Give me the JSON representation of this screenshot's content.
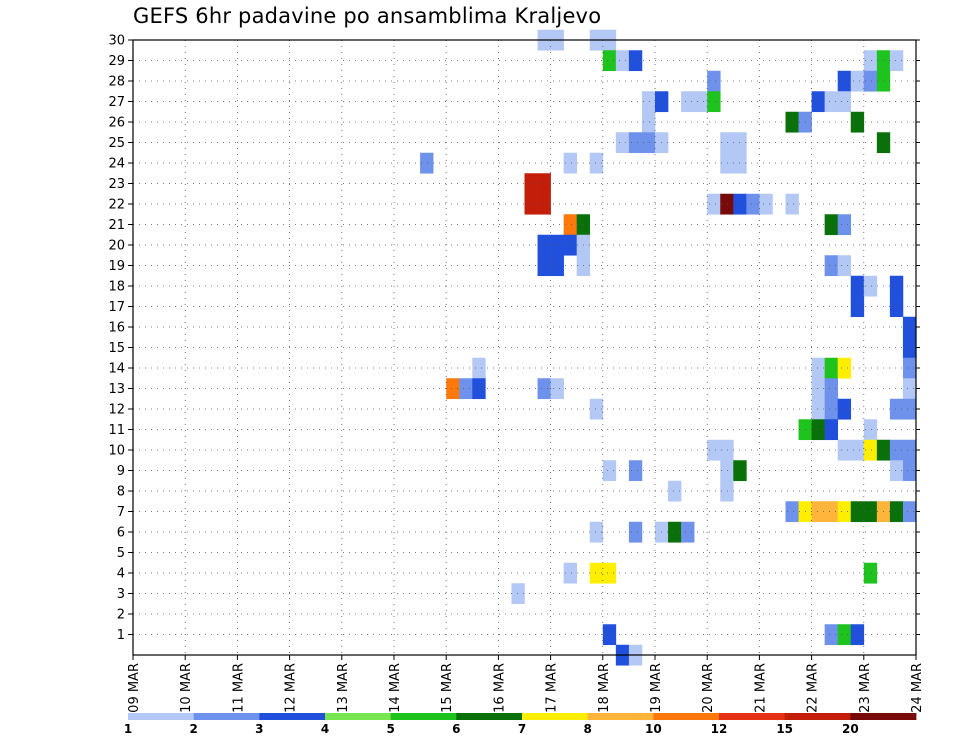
{
  "chart_data": {
    "type": "heatmap",
    "title": "GEFS 6hr padavine po ansamblima Kraljevo",
    "xlabel": "",
    "ylabel": "",
    "x_ticks": [
      "09 MAR",
      "10 MAR",
      "11 MAR",
      "12 MAR",
      "13 MAR",
      "14 MAR",
      "15 MAR",
      "16 MAR",
      "17 MAR",
      "18 MAR",
      "19 MAR",
      "20 MAR",
      "21 MAR",
      "22 MAR",
      "23 MAR",
      "24 MAR"
    ],
    "y_ticks": [
      1,
      2,
      3,
      4,
      5,
      6,
      7,
      8,
      9,
      10,
      11,
      12,
      13,
      14,
      15,
      16,
      17,
      18,
      19,
      20,
      21,
      22,
      23,
      24,
      25,
      26,
      27,
      28,
      29,
      30
    ],
    "xlim_days": [
      0,
      15
    ],
    "ylim_members": [
      0,
      30
    ],
    "steps_per_day": 4,
    "grid": true,
    "legend": {
      "position": "bottom",
      "labels": [
        "1",
        "2",
        "3",
        "4",
        "5",
        "6",
        "7",
        "8",
        "10",
        "12",
        "15",
        "20"
      ],
      "colors": [
        "#b4c8f5",
        "#6e91eb",
        "#2050dc",
        "#78e650",
        "#1ec31e",
        "#0a700a",
        "#ffee00",
        "#ffb43c",
        "#ff780a",
        "#e63214",
        "#c31e0a",
        "#780a0a"
      ]
    },
    "cells": [
      {
        "m": 30,
        "s": 31,
        "c": 1
      },
      {
        "m": 30,
        "s": 32,
        "c": 1
      },
      {
        "m": 30,
        "s": 35,
        "c": 1
      },
      {
        "m": 30,
        "s": 36,
        "c": 1
      },
      {
        "m": 29,
        "s": 36,
        "c": 5
      },
      {
        "m": 29,
        "s": 37,
        "c": 1
      },
      {
        "m": 29,
        "s": 38,
        "c": 3
      },
      {
        "m": 29,
        "s": 56,
        "c": 1
      },
      {
        "m": 29,
        "s": 57,
        "c": 5
      },
      {
        "m": 29,
        "s": 58,
        "c": 1
      },
      {
        "m": 28,
        "s": 44,
        "c": 2
      },
      {
        "m": 28,
        "s": 54,
        "c": 3
      },
      {
        "m": 28,
        "s": 55,
        "c": 1
      },
      {
        "m": 28,
        "s": 56,
        "c": 2
      },
      {
        "m": 28,
        "s": 57,
        "c": 5
      },
      {
        "m": 27,
        "s": 39,
        "c": 1
      },
      {
        "m": 27,
        "s": 40,
        "c": 3
      },
      {
        "m": 27,
        "s": 42,
        "c": 1
      },
      {
        "m": 27,
        "s": 43,
        "c": 1
      },
      {
        "m": 27,
        "s": 44,
        "c": 5
      },
      {
        "m": 27,
        "s": 52,
        "c": 3
      },
      {
        "m": 27,
        "s": 53,
        "c": 1
      },
      {
        "m": 27,
        "s": 54,
        "c": 1
      },
      {
        "m": 26,
        "s": 39,
        "c": 1
      },
      {
        "m": 26,
        "s": 50,
        "c": 6
      },
      {
        "m": 26,
        "s": 51,
        "c": 2
      },
      {
        "m": 26,
        "s": 55,
        "c": 6
      },
      {
        "m": 25,
        "s": 37,
        "c": 1
      },
      {
        "m": 25,
        "s": 38,
        "c": 2
      },
      {
        "m": 25,
        "s": 39,
        "c": 2
      },
      {
        "m": 25,
        "s": 40,
        "c": 1
      },
      {
        "m": 25,
        "s": 45,
        "c": 1
      },
      {
        "m": 25,
        "s": 46,
        "c": 1
      },
      {
        "m": 25,
        "s": 57,
        "c": 6
      },
      {
        "m": 24,
        "s": 22,
        "c": 2
      },
      {
        "m": 24,
        "s": 33,
        "c": 1
      },
      {
        "m": 24,
        "s": 35,
        "c": 1
      },
      {
        "m": 24,
        "s": 45,
        "c": 1
      },
      {
        "m": 24,
        "s": 46,
        "c": 1
      },
      {
        "m": 23,
        "s": 30,
        "c": 11
      },
      {
        "m": 23,
        "s": 31,
        "c": 11
      },
      {
        "m": 22,
        "s": 30,
        "c": 11
      },
      {
        "m": 22,
        "s": 31,
        "c": 11
      },
      {
        "m": 22,
        "s": 44,
        "c": 1
      },
      {
        "m": 22,
        "s": 45,
        "c": 12
      },
      {
        "m": 22,
        "s": 46,
        "c": 3
      },
      {
        "m": 22,
        "s": 47,
        "c": 2
      },
      {
        "m": 22,
        "s": 48,
        "c": 1
      },
      {
        "m": 22,
        "s": 50,
        "c": 1
      },
      {
        "m": 21,
        "s": 33,
        "c": 9
      },
      {
        "m": 21,
        "s": 34,
        "c": 6
      },
      {
        "m": 21,
        "s": 53,
        "c": 6
      },
      {
        "m": 21,
        "s": 54,
        "c": 2
      },
      {
        "m": 20,
        "s": 31,
        "c": 3
      },
      {
        "m": 20,
        "s": 32,
        "c": 3
      },
      {
        "m": 20,
        "s": 33,
        "c": 3
      },
      {
        "m": 20,
        "s": 34,
        "c": 1
      },
      {
        "m": 19,
        "s": 31,
        "c": 3
      },
      {
        "m": 19,
        "s": 32,
        "c": 3
      },
      {
        "m": 19,
        "s": 34,
        "c": 1
      },
      {
        "m": 19,
        "s": 53,
        "c": 2
      },
      {
        "m": 19,
        "s": 54,
        "c": 1
      },
      {
        "m": 18,
        "s": 55,
        "c": 3
      },
      {
        "m": 18,
        "s": 56,
        "c": 1
      },
      {
        "m": 18,
        "s": 58,
        "c": 3
      },
      {
        "m": 17,
        "s": 55,
        "c": 3
      },
      {
        "m": 17,
        "s": 58,
        "c": 3
      },
      {
        "m": 16,
        "s": 59,
        "c": 3
      },
      {
        "m": 15,
        "s": 59,
        "c": 3
      },
      {
        "m": 14,
        "s": 26,
        "c": 1
      },
      {
        "m": 14,
        "s": 52,
        "c": 1
      },
      {
        "m": 14,
        "s": 53,
        "c": 5
      },
      {
        "m": 14,
        "s": 54,
        "c": 7
      },
      {
        "m": 14,
        "s": 59,
        "c": 2
      },
      {
        "m": 13,
        "s": 24,
        "c": 9
      },
      {
        "m": 13,
        "s": 25,
        "c": 2
      },
      {
        "m": 13,
        "s": 26,
        "c": 3
      },
      {
        "m": 13,
        "s": 31,
        "c": 2
      },
      {
        "m": 13,
        "s": 32,
        "c": 1
      },
      {
        "m": 13,
        "s": 52,
        "c": 1
      },
      {
        "m": 13,
        "s": 53,
        "c": 2
      },
      {
        "m": 13,
        "s": 59,
        "c": 1
      },
      {
        "m": 12,
        "s": 35,
        "c": 1
      },
      {
        "m": 12,
        "s": 52,
        "c": 1
      },
      {
        "m": 12,
        "s": 53,
        "c": 2
      },
      {
        "m": 12,
        "s": 54,
        "c": 3
      },
      {
        "m": 12,
        "s": 58,
        "c": 2
      },
      {
        "m": 12,
        "s": 59,
        "c": 2
      },
      {
        "m": 11,
        "s": 51,
        "c": 5
      },
      {
        "m": 11,
        "s": 52,
        "c": 6
      },
      {
        "m": 11,
        "s": 53,
        "c": 3
      },
      {
        "m": 11,
        "s": 56,
        "c": 1
      },
      {
        "m": 10,
        "s": 44,
        "c": 1
      },
      {
        "m": 10,
        "s": 45,
        "c": 1
      },
      {
        "m": 10,
        "s": 54,
        "c": 1
      },
      {
        "m": 10,
        "s": 55,
        "c": 1
      },
      {
        "m": 10,
        "s": 56,
        "c": 7
      },
      {
        "m": 10,
        "s": 57,
        "c": 6
      },
      {
        "m": 10,
        "s": 58,
        "c": 2
      },
      {
        "m": 10,
        "s": 59,
        "c": 2
      },
      {
        "m": 9,
        "s": 36,
        "c": 1
      },
      {
        "m": 9,
        "s": 38,
        "c": 2
      },
      {
        "m": 9,
        "s": 45,
        "c": 1
      },
      {
        "m": 9,
        "s": 46,
        "c": 6
      },
      {
        "m": 9,
        "s": 58,
        "c": 1
      },
      {
        "m": 9,
        "s": 59,
        "c": 2
      },
      {
        "m": 8,
        "s": 41,
        "c": 1
      },
      {
        "m": 8,
        "s": 45,
        "c": 1
      },
      {
        "m": 7,
        "s": 50,
        "c": 2
      },
      {
        "m": 7,
        "s": 51,
        "c": 7
      },
      {
        "m": 7,
        "s": 52,
        "c": 8
      },
      {
        "m": 7,
        "s": 53,
        "c": 8
      },
      {
        "m": 7,
        "s": 54,
        "c": 7
      },
      {
        "m": 7,
        "s": 55,
        "c": 6
      },
      {
        "m": 7,
        "s": 56,
        "c": 6
      },
      {
        "m": 7,
        "s": 57,
        "c": 8
      },
      {
        "m": 7,
        "s": 58,
        "c": 6
      },
      {
        "m": 7,
        "s": 59,
        "c": 2
      },
      {
        "m": 6,
        "s": 35,
        "c": 1
      },
      {
        "m": 6,
        "s": 38,
        "c": 2
      },
      {
        "m": 6,
        "s": 40,
        "c": 1
      },
      {
        "m": 6,
        "s": 41,
        "c": 6
      },
      {
        "m": 6,
        "s": 42,
        "c": 2
      },
      {
        "m": 4,
        "s": 33,
        "c": 1
      },
      {
        "m": 4,
        "s": 35,
        "c": 7
      },
      {
        "m": 4,
        "s": 36,
        "c": 7
      },
      {
        "m": 4,
        "s": 56,
        "c": 5
      },
      {
        "m": 3,
        "s": 29,
        "c": 1
      },
      {
        "m": 1,
        "s": 36,
        "c": 3
      },
      {
        "m": 1,
        "s": 53,
        "c": 2
      },
      {
        "m": 1,
        "s": 54,
        "c": 5
      },
      {
        "m": 1,
        "s": 55,
        "c": 3
      },
      {
        "m": 0,
        "s": 37,
        "c": 3
      },
      {
        "m": 0,
        "s": 38,
        "c": 1
      }
    ]
  }
}
